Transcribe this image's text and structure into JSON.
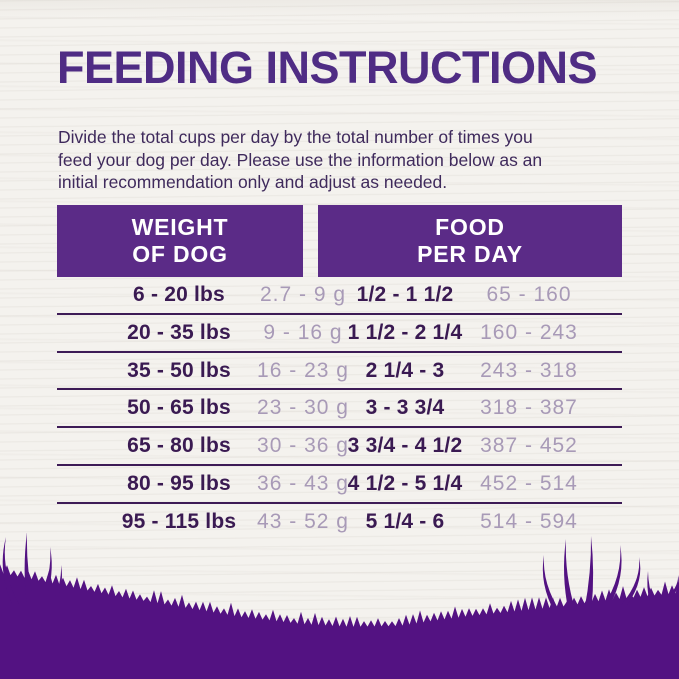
{
  "header": {
    "title": "FEEDING INSTRUCTIONS"
  },
  "intro": {
    "lines": [
      "Divide the total cups per day by the total number of times you",
      "feed your dog per day. Please use the information below as an",
      "initial recommendation only and adjust as needed."
    ]
  },
  "table": {
    "column_headers": [
      {
        "line1": "WEIGHT",
        "line2": "OF DOG"
      },
      {
        "line1": "FOOD",
        "line2": "PER DAY"
      }
    ],
    "rows": [
      {
        "weight_range": "6 - 20 lbs",
        "weight_grams": "2.7 - 9 g",
        "cups_range": "1/2 - 1 1/2",
        "grams_range": "65 - 160"
      },
      {
        "weight_range": "20 - 35 lbs",
        "weight_grams": "9 - 16 g",
        "cups_range": "1 1/2 - 2 1/4",
        "grams_range": "160 - 243"
      },
      {
        "weight_range": "35 - 50 lbs",
        "weight_grams": "16 - 23 g",
        "cups_range": "2 1/4 - 3",
        "grams_range": "243 - 318"
      },
      {
        "weight_range": "50 - 65 lbs",
        "weight_grams": "23 - 30 g",
        "cups_range": "3 - 3 3/4",
        "grams_range": "318 - 387"
      },
      {
        "weight_range": "65 - 80 lbs",
        "weight_grams": "30 - 36 g",
        "cups_range": "3 3/4 - 4 1/2",
        "grams_range": "387 - 452"
      },
      {
        "weight_range": "80 - 95 lbs",
        "weight_grams": "36 - 43 g",
        "cups_range": "4 1/2 - 5 1/4",
        "grams_range": "452 - 514"
      },
      {
        "weight_range": "95 - 115 lbs",
        "weight_grams": "43 - 52 g",
        "cups_range": "5 1/4 - 6",
        "grams_range": "514 - 594"
      }
    ]
  },
  "colors": {
    "brand_purple": "#5b2b87",
    "title_purple": "#4f2c84",
    "body_text_purple": "#3f2a5c",
    "dark_cell_text": "#3a1a52",
    "light_cell_text": "#a89ab7",
    "separator_line": "#3d1b56",
    "grass_purple": "#531282",
    "background": "#f4f2ee"
  }
}
